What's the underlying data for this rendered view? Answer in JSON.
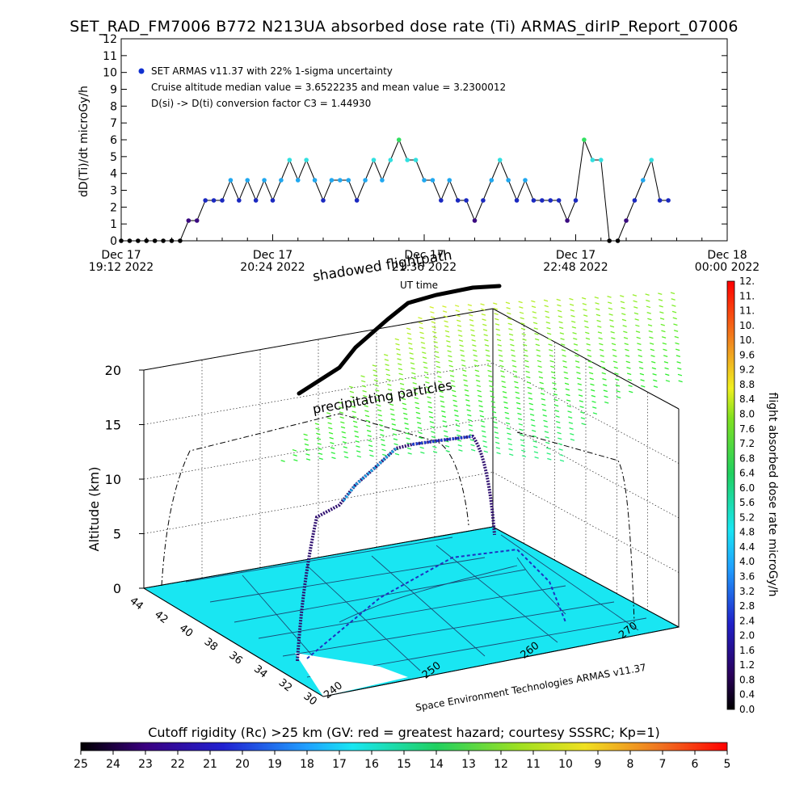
{
  "report": {
    "title": "SET_RAD_FM7006  B772 N213UA absorbed dose rate (Ti) ARMAS_dirIP_Report_07006",
    "credit": "Space Environment Technologies ARMAS v11.37"
  },
  "colors": {
    "series_marker": "#1030d0",
    "line": "#000000",
    "surface_fill": "#19e6f2",
    "background": "#ffffff"
  },
  "chart_data": [
    {
      "type": "line",
      "ylabel": "dD(Ti)/dt microGy/h",
      "xlabel": "UT time",
      "ylim": [
        0,
        12
      ],
      "y_ticks": [
        "0",
        "1",
        "2",
        "3",
        "4",
        "5",
        "6",
        "7",
        "8",
        "9",
        "10",
        "11",
        "12"
      ],
      "x_ticks": [
        {
          "line1": "Dec 17",
          "line2": "19:12 2022"
        },
        {
          "line1": "Dec 17",
          "line2": "20:24 2022"
        },
        {
          "line1": "Dec 17",
          "line2": "21:36 2022"
        },
        {
          "line1": "Dec 17",
          "line2": "22:48 2022"
        },
        {
          "line1": "Dec 18",
          "line2": "00:00 2022"
        }
      ],
      "xlim_minutes_since_1912": [
        0,
        288
      ],
      "legend": [
        "SET ARMAS v11.37 with 22% 1-sigma uncertainty",
        "Cruise altitude median value = 3.6522235 and mean value = 3.2300012",
        "D(si) -> D(ti) conversion factor C3 = 1.44930"
      ],
      "legend_position": "top-left",
      "series": [
        {
          "x": [
            0,
            4,
            8,
            12,
            16,
            20,
            24,
            28,
            32,
            36,
            40,
            44,
            48,
            52,
            56,
            60,
            64,
            68,
            72,
            76,
            80,
            84,
            88,
            92,
            96,
            100,
            104,
            108,
            112,
            116,
            120,
            124,
            128,
            132,
            136,
            140,
            144,
            148,
            152,
            156,
            160,
            164,
            168,
            172,
            176,
            180,
            184,
            188,
            192,
            196,
            200,
            204,
            208,
            212,
            216,
            220,
            224,
            228,
            232,
            236,
            240,
            244,
            248,
            252,
            256,
            260
          ],
          "values": [
            0,
            0,
            0,
            0,
            0,
            0,
            0,
            0,
            1.2,
            1.2,
            2.4,
            2.4,
            2.4,
            3.6,
            2.4,
            3.6,
            2.4,
            3.6,
            2.4,
            3.6,
            4.8,
            3.6,
            4.8,
            3.6,
            2.4,
            3.6,
            3.6,
            3.6,
            2.4,
            3.6,
            4.8,
            3.6,
            4.8,
            6.0,
            4.8,
            4.8,
            3.6,
            3.6,
            2.4,
            3.6,
            2.4,
            2.4,
            1.2,
            2.4,
            3.6,
            4.8,
            3.6,
            2.4,
            3.6,
            2.4,
            2.4,
            2.4,
            2.4,
            1.2,
            2.4,
            6.0,
            4.8,
            4.8,
            0,
            0,
            1.2,
            2.4,
            3.6,
            4.8,
            2.4,
            2.4
          ]
        }
      ]
    },
    {
      "type": "scatter",
      "title": "",
      "zlabel": "Altitude (km)",
      "z_ticks": [
        "0",
        "5",
        "10",
        "15",
        "20"
      ],
      "lat_ticks": [
        "44",
        "42",
        "40",
        "38",
        "36",
        "34",
        "32",
        "30"
      ],
      "lon_ticks": [
        "240",
        "250",
        "260",
        "270"
      ],
      "annotations": [
        "shadowed flightpath",
        "precipitating particles"
      ],
      "dose_colorbar": {
        "label": "flight absorbed dose rate microGy/h",
        "ticks": [
          "0.0",
          "0.4",
          "0.8",
          "1.2",
          "1.6",
          "2.0",
          "2.4",
          "2.8",
          "3.2",
          "3.6",
          "4.0",
          "4.4",
          "4.8",
          "5.2",
          "5.6",
          "6.0",
          "6.4",
          "6.8",
          "7.2",
          "7.6",
          "8.0",
          "8.4",
          "8.8",
          "9.2",
          "9.6",
          "10.",
          "10.",
          "11.",
          "11.",
          "12."
        ]
      },
      "cutoff_colorbar": {
        "label": "Cutoff rigidity (Rc) >25 km (GV: red = greatest hazard; courtesy SSSRC; Kp=1)",
        "ticks": [
          "25",
          "24",
          "23",
          "22",
          "21",
          "20",
          "19",
          "18",
          "17",
          "16",
          "15",
          "14",
          "13",
          "12",
          "11",
          "10",
          "9",
          "8",
          "7",
          "6",
          "5"
        ]
      }
    }
  ]
}
